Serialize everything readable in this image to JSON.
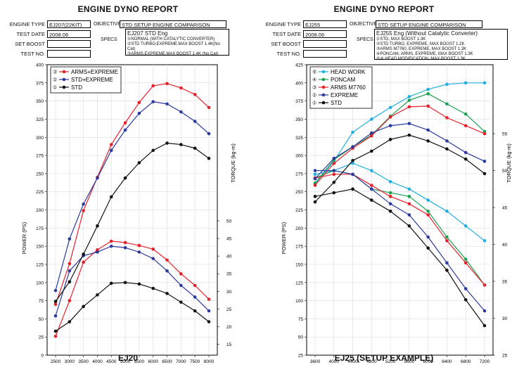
{
  "panels": [
    {
      "report_title": "ENGINE DYNO REPORT",
      "engine_type_label": "ENGINE TYPE",
      "engine_type": "EJ207(22KIT)",
      "objective_label": "OBJECTIVE",
      "objective": "STD SETUP ENGINE COMPARISON",
      "test_date_label": "TEST DATE",
      "test_date": "2008.06",
      "set_boost_label": "SET BOOST",
      "set_boost": "",
      "test_no_label": "TEST NO.",
      "test_no": "",
      "specs_label": "SPECS",
      "specs_head": "EJ207 STD Eng",
      "specs": [
        "①NORMAL (WITH CATALYTIC CONVERTER)",
        "②STD TURBO,EXPREME,MAX BOOST 1.4K(No Cat)",
        "③ARMS,EXPREME,MAX BOOST 1.4K (No Cat)"
      ],
      "footer": "EJ20"
    },
    {
      "report_title": "ENGINE DYNO REPORT",
      "engine_type_label": "ENGINE TYPE",
      "engine_type": "EJ255",
      "objective_label": "OBJECTIVE",
      "objective": "STD SETUP ENGINE COMPARISON",
      "test_date_label": "TEST DATE",
      "test_date": "2008.06",
      "set_boost_label": "SET BOOST",
      "set_boost": "",
      "test_no_label": "TEST NO.",
      "test_no": "",
      "specs_label": "SPECS",
      "specs_head": "EJ255 Eng (Without Catalytic Converter)",
      "specs": [
        "①STD, MAX BOOST 1.3K",
        "②STD TURBO, EXPREME, MAX BOOST 1.2K",
        "③ARMS M7760, EXPREME, MAX BOOST 1.3K",
        "④PONCAM, ARMS, EXPREME, MAX BOOST 1.3K",
        "⑤④ HEAD MODIFICATION, MAX BOOST 1.3K"
      ],
      "footer": "EJ25 (SETUP EXAMPLE)"
    }
  ],
  "chart_data": [
    {
      "type": "line",
      "x": [
        2500,
        3000,
        3500,
        4000,
        4500,
        5000,
        5500,
        6000,
        6500,
        7000,
        7500,
        8000
      ],
      "xticks": [
        "2500",
        "3000",
        "3500",
        "4000",
        "4500",
        "5000",
        "5500",
        "6000",
        "6500",
        "7000",
        "7500",
        "8000"
      ],
      "xlabel": "REV (RPM)",
      "ylabel": "POWER (PS)",
      "ylabel2": "TORQUE (kg-m)",
      "ylim": [
        0,
        400
      ],
      "yticks": [
        "0",
        "25",
        "50",
        "75",
        "100",
        "125",
        "150",
        "175",
        "200",
        "225",
        "250",
        "275",
        "300",
        "325",
        "350",
        "375",
        "400"
      ],
      "y2lim": [
        15,
        50
      ],
      "y2ticks": [
        "15",
        "20",
        "25",
        "30",
        "35",
        "40",
        "45",
        "50"
      ],
      "grid": true,
      "legend_position": "top-left",
      "series": [
        {
          "name": "ARMS+EXPREME",
          "index": "③",
          "color": "#e8202a",
          "power": [
            26,
            75,
            128,
            145,
            157,
            155,
            151,
            146,
            131,
            112,
            96,
            77
          ],
          "torque": [
            21,
            28,
            36,
            41,
            43,
            43,
            42.5,
            42,
            40,
            36.5,
            33.5,
            29
          ]
        },
        {
          "name": "STD+EXPREME",
          "index": "②",
          "color": "#2b3a9e",
          "power": [
            54,
            116,
            137,
            142,
            150,
            148,
            142,
            133,
            116,
            96,
            80,
            61
          ],
          "torque": [
            28,
            34,
            38.5,
            40.5,
            42.5,
            42.5,
            42,
            40.5,
            38.5,
            35.5,
            32.5,
            29
          ]
        },
        {
          "name": "STD",
          "index": "①",
          "color": "#111111",
          "power": [
            33,
            46,
            67,
            83,
            99,
            100,
            98,
            92,
            85,
            73,
            61,
            46
          ],
          "torque": [
            21.5,
            25,
            29.5,
            33,
            35.5,
            37,
            38.5,
            40,
            39.5,
            38.5,
            37.5,
            36.5
          ]
        }
      ],
      "power_overlay": {
        "ARMS+EXPREME": [
          70,
          126,
          199,
          245,
          290,
          320,
          348,
          371,
          374,
          368,
          359,
          341
        ],
        "STD+EXPREME": [
          89,
          160,
          208,
          244,
          282,
          310,
          333,
          349,
          346,
          335,
          322,
          305
        ],
        "STD": [
          74,
          101,
          139,
          178,
          218,
          244,
          265,
          282,
          292,
          290,
          285,
          271
        ]
      }
    },
    {
      "type": "line",
      "x": [
        3600,
        4000,
        4400,
        4800,
        5200,
        5600,
        6000,
        6400,
        6800,
        7200
      ],
      "xticks": [
        "3600",
        "4000",
        "4400",
        "4800",
        "5200",
        "5600",
        "6000",
        "6400",
        "6800",
        "7200"
      ],
      "xlabel": "REV (RPM)",
      "ylabel": "POWER (PS)",
      "ylabel2": "TORQUE (kg-m)",
      "ylim": [
        25,
        425
      ],
      "yticks": [
        "25",
        "50",
        "75",
        "100",
        "125",
        "150",
        "175",
        "200",
        "225",
        "250",
        "275",
        "300",
        "325",
        "350",
        "375",
        "400",
        "425"
      ],
      "y2lim": [
        25,
        55
      ],
      "y2ticks": [
        "25",
        "30",
        "35",
        "40",
        "45",
        "50",
        "55"
      ],
      "grid": true,
      "legend_position": "top-left",
      "series": [
        {
          "name": "HEAD WORK",
          "index": "⑤",
          "color": "#22aee0",
          "power": [
            261,
            292,
            332,
            350,
            366,
            381,
            391,
            398,
            400,
            400
          ],
          "torque": [
            49.5,
            50,
            51,
            50,
            48.5,
            47.5,
            46,
            44.5,
            42.5,
            40.5
          ]
        },
        {
          "name": "PONCAM",
          "index": "④",
          "color": "#1aa150",
          "power": [
            262,
            294,
            312,
            328,
            354,
            376,
            385,
            371,
            357,
            333
          ],
          "torque": [
            49,
            50,
            49.5,
            47.5,
            47,
            46.5,
            44.5,
            41,
            38,
            34.5
          ]
        },
        {
          "name": "ARMS M7760",
          "index": "③",
          "color": "#e8202a",
          "power": [
            259,
            289,
            310,
            327,
            353,
            367,
            368,
            352,
            341,
            330
          ],
          "torque": [
            49,
            49.5,
            49.5,
            48,
            46.5,
            45.5,
            44,
            40.5,
            37.5,
            34.5
          ]
        },
        {
          "name": "EXPREME",
          "index": "②",
          "color": "#2b3a9e",
          "power": [
            268,
            296,
            312,
            331,
            341,
            344,
            335,
            320,
            304,
            292
          ],
          "torque": [
            50,
            50,
            49.5,
            47.5,
            45.5,
            44,
            41,
            37.5,
            34,
            31
          ]
        },
        {
          "name": "STD",
          "index": "①",
          "color": "#111111",
          "power": [
            236,
            263,
            293,
            306,
            322,
            328,
            320,
            309,
            295,
            275
          ],
          "torque": [
            46.5,
            47,
            47.5,
            46,
            44.5,
            42.5,
            39.5,
            36.5,
            32.5,
            29
          ]
        }
      ]
    }
  ]
}
